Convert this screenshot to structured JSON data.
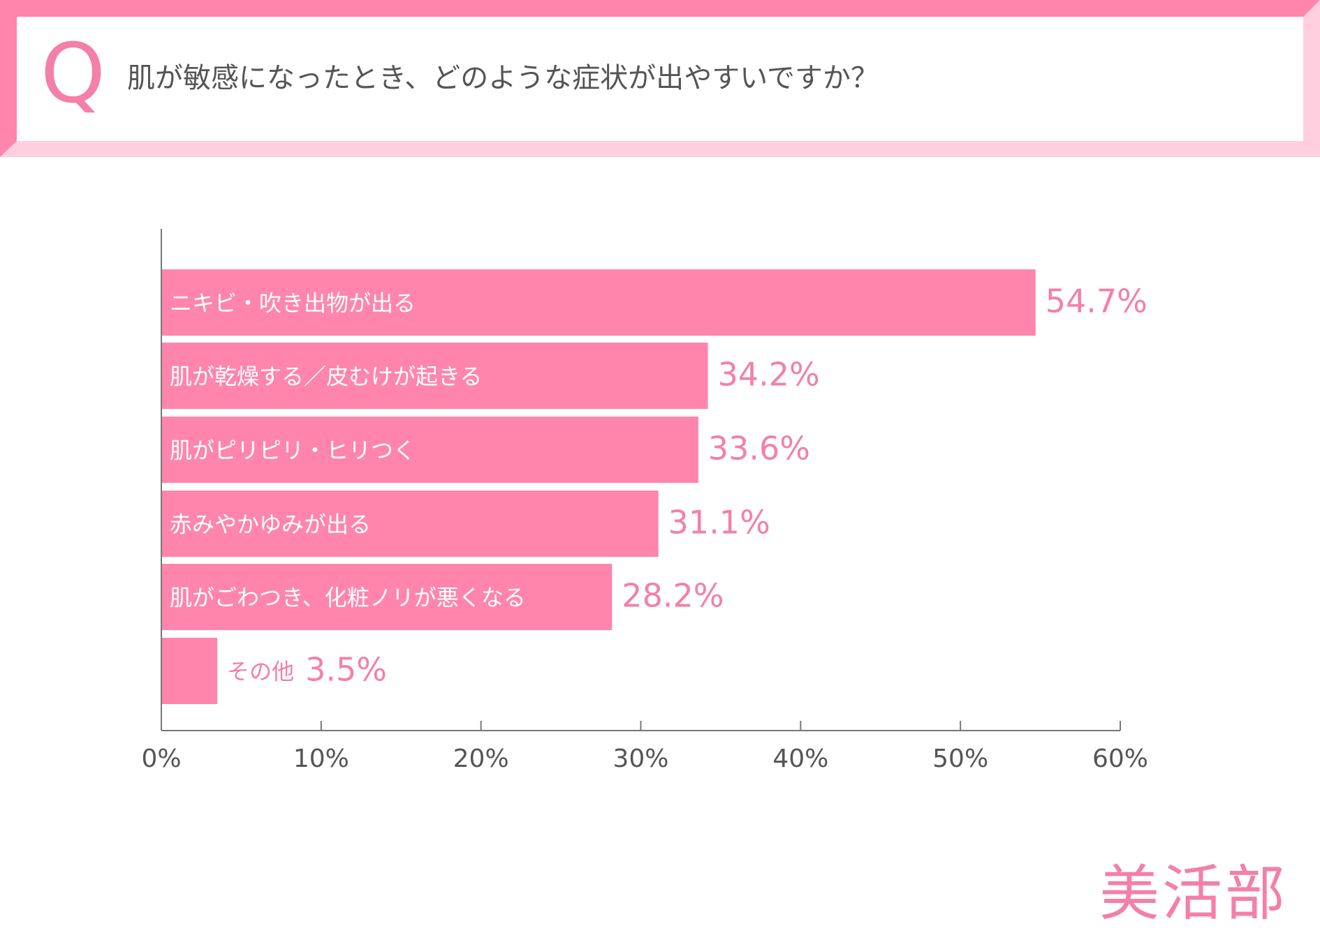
{
  "question": {
    "letter": "Q",
    "text": "肌が敏感になったとき、どのような症状が出やすいですか？"
  },
  "colors": {
    "bar": "#ff85ad",
    "accent_text": "#f47fa8",
    "frame_dark": "#ff85ad",
    "frame_light": "#ffcfe0",
    "axis": "#777777",
    "tick_label": "#555555",
    "label_on_bar": "#ffffff"
  },
  "brand": {
    "logo_text": "美活部"
  },
  "chart_data": {
    "type": "bar",
    "orientation": "horizontal",
    "categories": [
      "ニキビ・吹き出物が出る",
      "肌が乾燥する／皮むけが起きる",
      "肌がピリピリ・ヒリつく",
      "赤みやかゆみが出る",
      "肌がごわつき、化粧ノリが悪くなる",
      "その他"
    ],
    "values": [
      54.7,
      34.2,
      33.6,
      31.1,
      28.2,
      3.5
    ],
    "value_labels": [
      "54.7%",
      "34.2%",
      "33.6%",
      "31.1%",
      "28.2%",
      "3.5%"
    ],
    "xlim": [
      0,
      60
    ],
    "xticks": [
      0,
      10,
      20,
      30,
      40,
      50,
      60
    ],
    "xtick_labels": [
      "0%",
      "10%",
      "20%",
      "30%",
      "40%",
      "50%",
      "60%"
    ],
    "grid": false,
    "legend": "none"
  }
}
